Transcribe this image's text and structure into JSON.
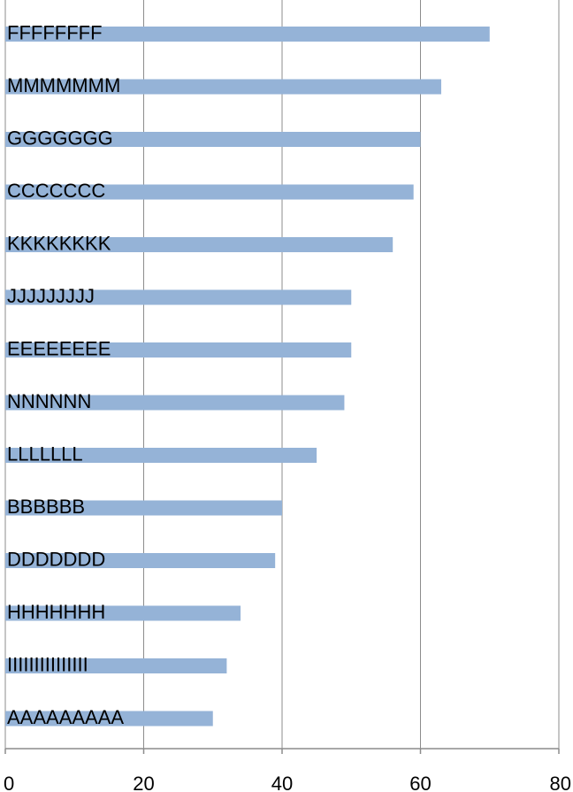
{
  "chart_data": {
    "type": "bar",
    "orientation": "horizontal",
    "categories": [
      "FFFFFFFF",
      "MMMMMMM",
      "GGGGGGG",
      "CCCCCCC",
      "KKKKKKKK",
      "JJJJJJJJJ",
      "EEEEEEEE",
      "NNNNNN",
      "LLLLLLL",
      "BBBBBB",
      "DDDDDDD",
      "HHHHHHH",
      "IIIIIIIIIIIIIII",
      "AAAAAAAAA"
    ],
    "values": [
      70,
      63,
      60,
      59,
      56,
      50,
      50,
      49,
      45,
      40,
      39,
      34,
      32,
      30
    ],
    "xlim": [
      0,
      80
    ],
    "xticks": [
      "0",
      "20",
      "40",
      "60",
      "80"
    ],
    "grid": true,
    "bar_color": "#95b3d7",
    "axis_color": "#8c8c8c"
  }
}
